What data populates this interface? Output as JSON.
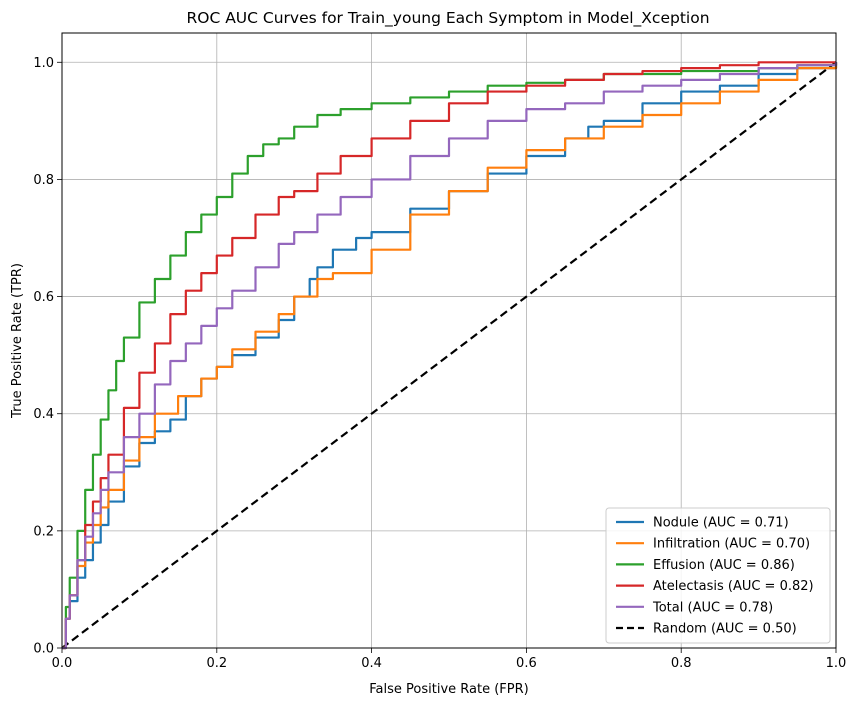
{
  "chart_data": {
    "type": "line",
    "title": "ROC AUC Curves for Train_young Each Symptom in Model_Xception",
    "xlabel": "False Positive Rate (FPR)",
    "ylabel": "True Positive Rate (TPR)",
    "xlim": [
      0,
      1
    ],
    "ylim": [
      0,
      1.05
    ],
    "xticks": [
      0.0,
      0.2,
      0.4,
      0.6,
      0.8,
      1.0
    ],
    "yticks": [
      0.0,
      0.2,
      0.4,
      0.6,
      0.8,
      1.0
    ],
    "xtick_labels": [
      "0.0",
      "0.2",
      "0.4",
      "0.6",
      "0.8",
      "1.0"
    ],
    "ytick_labels": [
      "0.0",
      "0.2",
      "0.4",
      "0.6",
      "0.8",
      "1.0"
    ],
    "grid": true,
    "legend_position": "lower-right",
    "series": [
      {
        "name": "Nodule (AUC = 0.71)",
        "color": "#1f77b4",
        "style": "solid",
        "x": [
          0,
          0.005,
          0.01,
          0.02,
          0.03,
          0.04,
          0.05,
          0.06,
          0.08,
          0.1,
          0.12,
          0.14,
          0.16,
          0.18,
          0.2,
          0.22,
          0.25,
          0.28,
          0.3,
          0.32,
          0.33,
          0.35,
          0.38,
          0.4,
          0.45,
          0.5,
          0.55,
          0.6,
          0.65,
          0.68,
          0.7,
          0.75,
          0.8,
          0.85,
          0.9,
          0.95,
          1.0
        ],
        "y": [
          0,
          0.05,
          0.08,
          0.12,
          0.15,
          0.18,
          0.21,
          0.25,
          0.31,
          0.35,
          0.37,
          0.39,
          0.43,
          0.46,
          0.48,
          0.5,
          0.53,
          0.56,
          0.6,
          0.63,
          0.65,
          0.68,
          0.7,
          0.71,
          0.75,
          0.78,
          0.81,
          0.84,
          0.87,
          0.89,
          0.9,
          0.93,
          0.95,
          0.96,
          0.98,
          0.99,
          1.0
        ]
      },
      {
        "name": "Infiltration (AUC = 0.70)",
        "color": "#ff7f0e",
        "style": "solid",
        "x": [
          0,
          0.005,
          0.01,
          0.02,
          0.03,
          0.04,
          0.05,
          0.06,
          0.08,
          0.1,
          0.12,
          0.15,
          0.18,
          0.2,
          0.22,
          0.25,
          0.28,
          0.3,
          0.33,
          0.35,
          0.4,
          0.45,
          0.5,
          0.55,
          0.6,
          0.65,
          0.7,
          0.75,
          0.8,
          0.85,
          0.9,
          0.95,
          1.0
        ],
        "y": [
          0,
          0.05,
          0.09,
          0.14,
          0.18,
          0.21,
          0.24,
          0.27,
          0.32,
          0.36,
          0.4,
          0.43,
          0.46,
          0.48,
          0.51,
          0.54,
          0.57,
          0.6,
          0.63,
          0.64,
          0.68,
          0.74,
          0.78,
          0.82,
          0.85,
          0.87,
          0.89,
          0.91,
          0.93,
          0.95,
          0.97,
          0.99,
          1.0
        ]
      },
      {
        "name": "Effusion (AUC = 0.86)",
        "color": "#2ca02c",
        "style": "solid",
        "x": [
          0,
          0.005,
          0.01,
          0.02,
          0.03,
          0.04,
          0.05,
          0.06,
          0.07,
          0.08,
          0.1,
          0.12,
          0.14,
          0.16,
          0.18,
          0.2,
          0.22,
          0.24,
          0.26,
          0.28,
          0.3,
          0.33,
          0.36,
          0.4,
          0.45,
          0.5,
          0.55,
          0.6,
          0.65,
          0.7,
          0.8,
          0.9,
          0.95,
          1.0
        ],
        "y": [
          0,
          0.07,
          0.12,
          0.2,
          0.27,
          0.33,
          0.39,
          0.44,
          0.49,
          0.53,
          0.59,
          0.63,
          0.67,
          0.71,
          0.74,
          0.77,
          0.81,
          0.84,
          0.86,
          0.87,
          0.89,
          0.91,
          0.92,
          0.93,
          0.94,
          0.95,
          0.96,
          0.965,
          0.97,
          0.98,
          0.985,
          0.99,
          0.995,
          1.0
        ]
      },
      {
        "name": "Atelectasis (AUC = 0.82)",
        "color": "#d62728",
        "style": "solid",
        "x": [
          0,
          0.005,
          0.01,
          0.02,
          0.03,
          0.04,
          0.05,
          0.06,
          0.08,
          0.1,
          0.12,
          0.14,
          0.16,
          0.18,
          0.2,
          0.22,
          0.25,
          0.28,
          0.3,
          0.33,
          0.36,
          0.4,
          0.45,
          0.5,
          0.55,
          0.6,
          0.65,
          0.7,
          0.75,
          0.8,
          0.85,
          0.9,
          0.95,
          1.0
        ],
        "y": [
          0,
          0.05,
          0.09,
          0.15,
          0.21,
          0.25,
          0.29,
          0.33,
          0.41,
          0.47,
          0.52,
          0.57,
          0.61,
          0.64,
          0.67,
          0.7,
          0.74,
          0.77,
          0.78,
          0.81,
          0.84,
          0.87,
          0.9,
          0.93,
          0.95,
          0.96,
          0.97,
          0.98,
          0.985,
          0.99,
          0.995,
          1.0,
          1.0,
          1.0
        ]
      },
      {
        "name": "Total (AUC = 0.78)",
        "color": "#9467bd",
        "style": "solid",
        "x": [
          0,
          0.005,
          0.01,
          0.02,
          0.03,
          0.04,
          0.05,
          0.06,
          0.08,
          0.1,
          0.12,
          0.14,
          0.16,
          0.18,
          0.2,
          0.22,
          0.25,
          0.28,
          0.3,
          0.33,
          0.36,
          0.4,
          0.45,
          0.5,
          0.55,
          0.6,
          0.65,
          0.7,
          0.75,
          0.8,
          0.85,
          0.9,
          0.95,
          1.0
        ],
        "y": [
          0,
          0.05,
          0.09,
          0.15,
          0.19,
          0.23,
          0.27,
          0.3,
          0.36,
          0.4,
          0.45,
          0.49,
          0.52,
          0.55,
          0.58,
          0.61,
          0.65,
          0.69,
          0.71,
          0.74,
          0.77,
          0.8,
          0.84,
          0.87,
          0.9,
          0.92,
          0.93,
          0.95,
          0.96,
          0.97,
          0.98,
          0.99,
          0.995,
          1.0
        ]
      },
      {
        "name": "Random (AUC = 0.50)",
        "color": "#000000",
        "style": "dashed",
        "x": [
          0,
          1
        ],
        "y": [
          0,
          1
        ]
      }
    ]
  }
}
